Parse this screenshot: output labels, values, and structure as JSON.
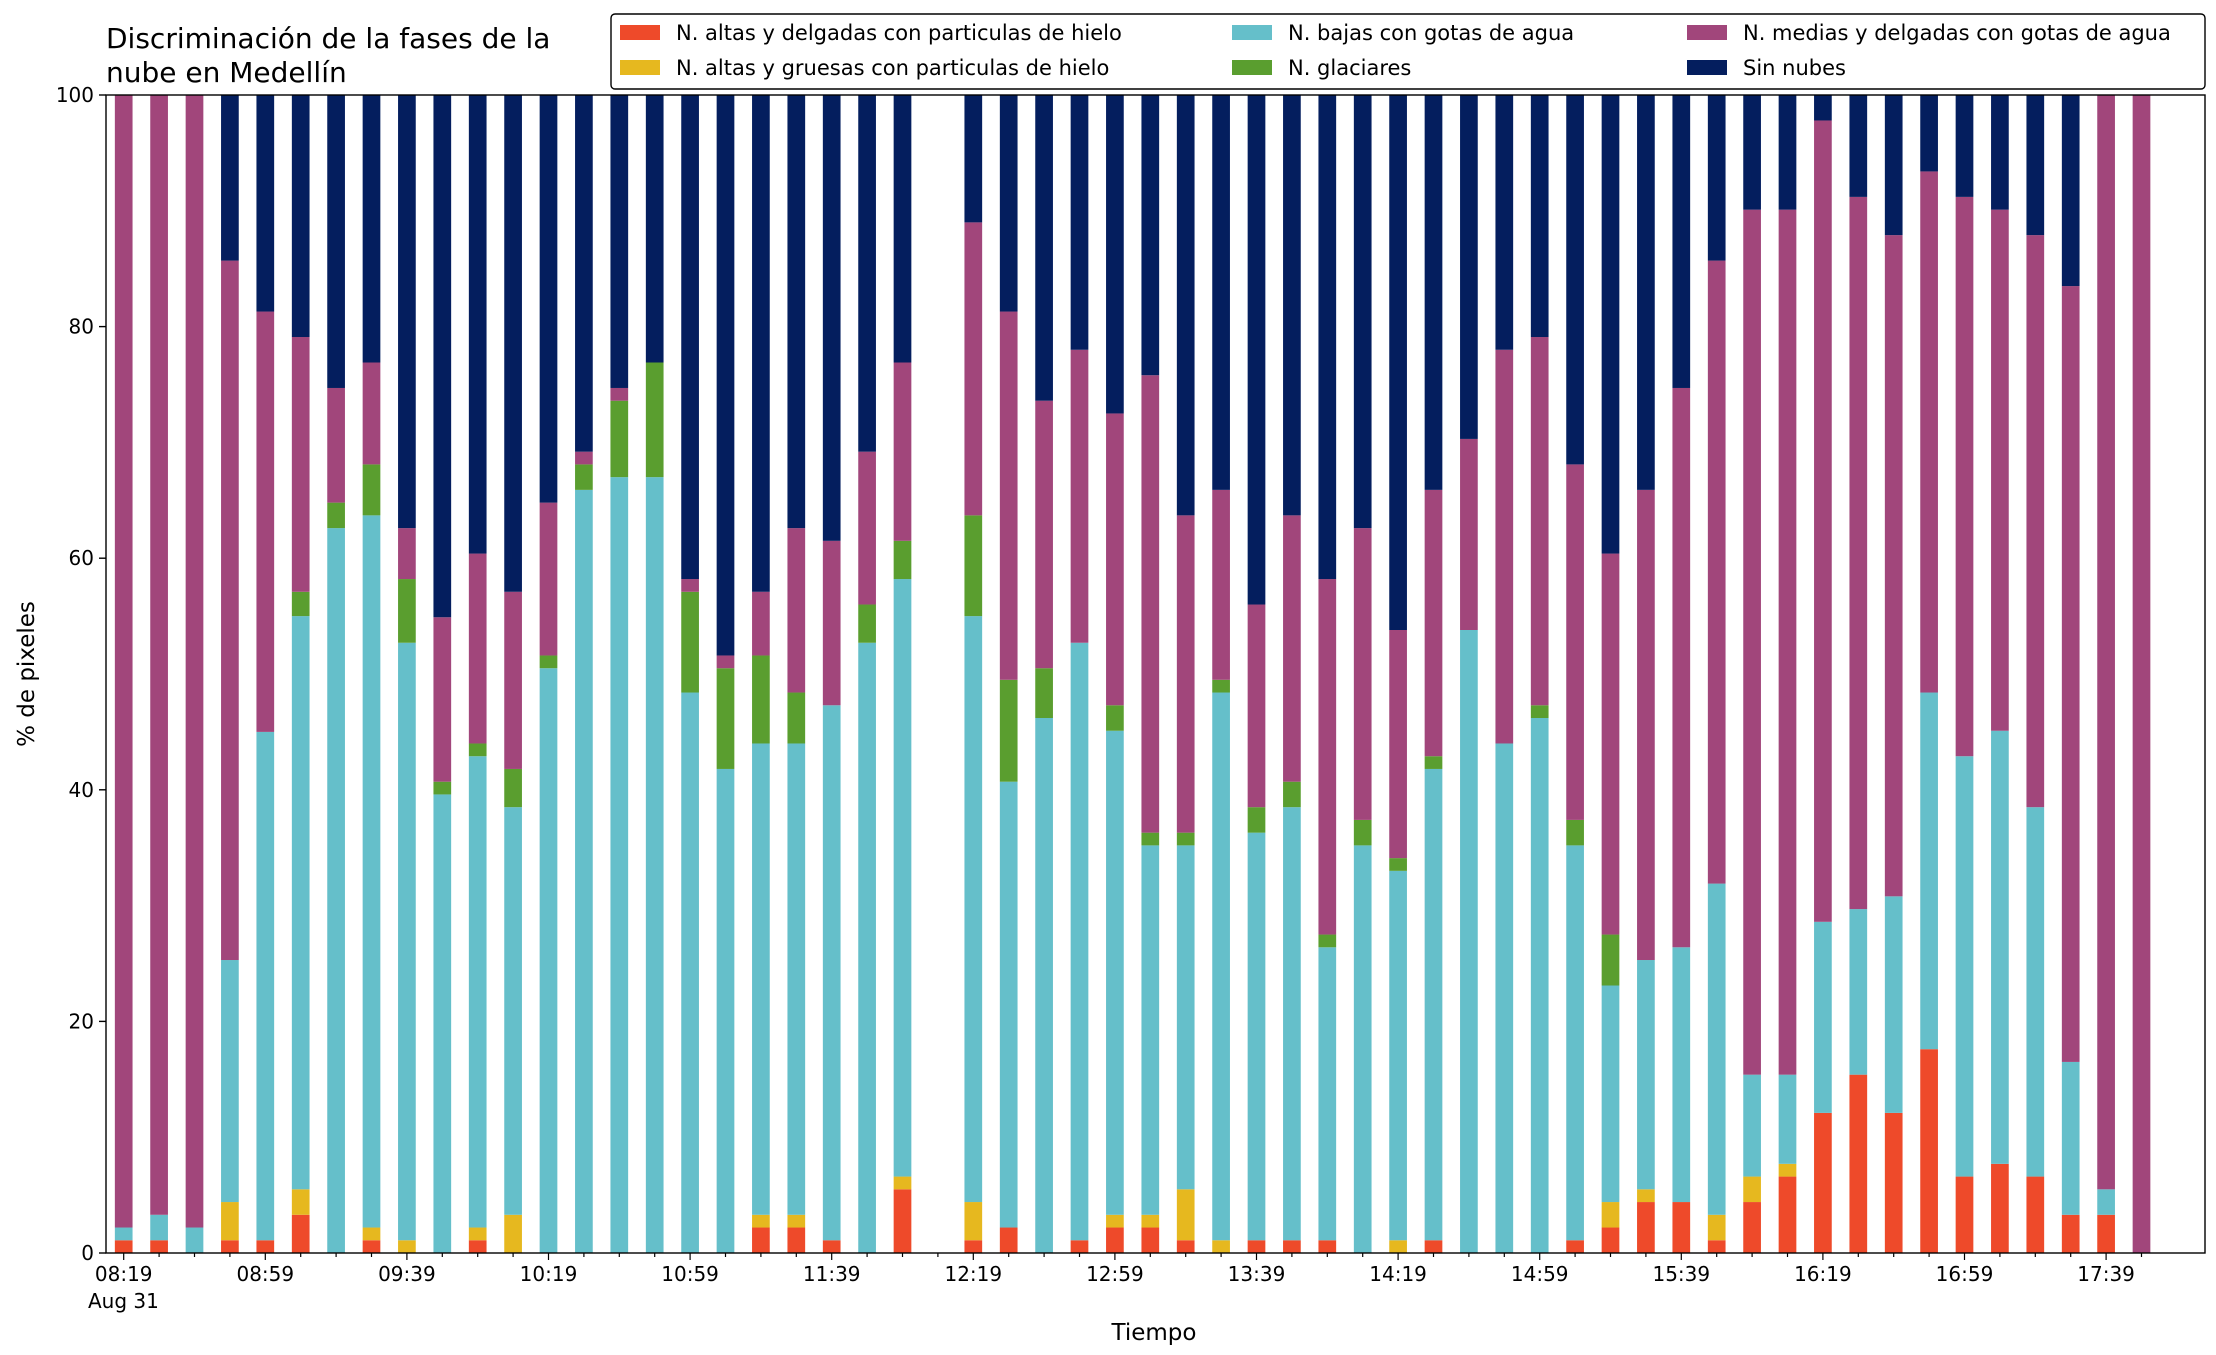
{
  "chart_data": {
    "type": "stacked_bar",
    "title": "Discriminación de la fases de la nube en Medellín",
    "xlabel": "Tiempo",
    "ylabel": "% de pixeles",
    "date_label": "Aug 31",
    "categories": [
      "08:19",
      null,
      null,
      null,
      "08:59",
      null,
      null,
      null,
      "09:39",
      null,
      null,
      null,
      "10:19",
      null,
      null,
      null,
      "10:59",
      null,
      null,
      null,
      "11:39",
      null,
      null,
      null,
      "12:19",
      null,
      null,
      null,
      "12:59",
      null,
      null,
      null,
      "13:39",
      null,
      null,
      null,
      "14:19",
      null,
      null,
      null,
      "14:59",
      null,
      null,
      null,
      "15:39",
      null,
      null,
      null,
      "16:19",
      null,
      null,
      null,
      "16:59",
      null,
      null,
      null,
      "17:39",
      null
    ],
    "ylim": [
      0,
      100
    ],
    "yticks": [
      0,
      20,
      40,
      60,
      80,
      100
    ],
    "legend": "upper right",
    "series": [
      {
        "name": "N. altas y delgadas con particulas de hielo",
        "color": "#ee4a2a",
        "values": [
          1.1,
          1.1,
          0,
          1.1,
          1.1,
          3.3,
          0,
          1.1,
          0,
          0,
          1.1,
          0,
          0,
          0,
          0,
          0,
          0,
          0,
          2.2,
          2.2,
          1.1,
          0,
          5.5,
          null,
          1.1,
          2.2,
          0,
          1.1,
          2.2,
          2.2,
          1.1,
          0,
          1.1,
          1.1,
          1.1,
          0,
          0,
          1.1,
          0,
          0,
          0,
          1.1,
          2.2,
          4.4,
          4.4,
          1.1,
          4.4,
          6.6,
          12.1,
          15.4,
          12.1,
          17.6,
          6.6,
          7.7,
          6.6,
          3.3,
          3.3,
          0
        ]
      },
      {
        "name": "N. altas y gruesas con particulas de hielo",
        "color": "#e6b81f",
        "values": [
          0,
          0,
          0,
          3.3,
          0,
          2.2,
          0,
          1.1,
          1.1,
          0,
          1.1,
          3.3,
          0,
          0,
          0,
          0,
          0,
          0,
          1.1,
          1.1,
          0,
          0,
          1.1,
          null,
          3.3,
          0,
          0,
          0,
          1.1,
          1.1,
          4.4,
          1.1,
          0,
          0,
          0,
          0,
          1.1,
          0,
          0,
          0,
          0,
          0,
          2.2,
          1.1,
          0,
          2.2,
          2.2,
          1.1,
          0,
          0,
          0,
          0,
          0,
          0,
          0,
          0,
          0,
          0
        ]
      },
      {
        "name": "N. bajas con gotas de agua",
        "color": "#65bfca",
        "values": [
          1.1,
          2.2,
          2.2,
          20.9,
          43.9,
          49.5,
          62.6,
          61.5,
          51.6,
          39.6,
          40.7,
          35.2,
          50.5,
          65.9,
          67,
          67,
          48.4,
          41.8,
          40.7,
          40.7,
          46.2,
          52.7,
          51.6,
          null,
          50.6,
          38.5,
          46.2,
          51.6,
          41.8,
          31.9,
          29.7,
          47.3,
          35.2,
          37.4,
          25.3,
          35.2,
          31.9,
          40.7,
          53.8,
          44,
          46.2,
          34.1,
          18.7,
          19.8,
          22,
          28.6,
          8.8,
          7.7,
          16.5,
          14.3,
          18.7,
          30.8,
          36.3,
          37.4,
          31.9,
          13.2,
          2.2,
          0
        ]
      },
      {
        "name": "N. glaciares",
        "color": "#5a9e2f",
        "values": [
          0,
          0,
          0,
          0,
          0,
          2.1,
          2.2,
          4.4,
          5.5,
          1.1,
          1.1,
          3.3,
          1.1,
          2.2,
          6.6,
          9.9,
          8.7,
          8.7,
          7.6,
          4.4,
          0,
          3.3,
          3.3,
          null,
          8.7,
          8.8,
          4.3,
          0,
          2.2,
          1.1,
          1.1,
          1.1,
          2.2,
          2.2,
          1.1,
          2.2,
          1.1,
          1.1,
          0,
          0,
          1.1,
          2.2,
          4.4,
          0,
          0,
          0,
          0,
          0,
          0,
          0,
          0,
          0,
          0,
          0,
          0,
          0,
          0,
          0
        ]
      },
      {
        "name": "N. medias y delgadas con gotas de agua",
        "color": "#a1467b",
        "values": [
          97.8,
          96.7,
          97.8,
          60.4,
          36.3,
          22,
          9.9,
          8.8,
          4.4,
          14.2,
          16.4,
          15.3,
          13.2,
          1.1,
          1.1,
          0,
          1.1,
          1.1,
          5.5,
          14.2,
          14.2,
          13.2,
          15.4,
          null,
          25.3,
          31.8,
          23.1,
          25.3,
          25.2,
          39.5,
          27.4,
          16.4,
          17.5,
          23,
          30.7,
          25.2,
          19.7,
          23,
          16.5,
          34,
          31.8,
          30.7,
          32.9,
          40.6,
          48.3,
          53.8,
          74.7,
          74.7,
          69.2,
          61.5,
          57.1,
          45,
          48.3,
          45,
          49.4,
          67,
          94.5,
          100
        ]
      },
      {
        "name": "Sin nubes",
        "color": "#041e5e",
        "values": [
          0,
          0,
          0,
          14.3,
          18.7,
          20.9,
          25.3,
          23.1,
          37.4,
          45.1,
          39.6,
          42.9,
          35.2,
          30.8,
          25.3,
          23.1,
          41.8,
          48.4,
          42.9,
          37.4,
          38.5,
          30.8,
          23.1,
          null,
          11,
          18.7,
          26.4,
          22,
          27.5,
          24.2,
          36.3,
          34.1,
          44,
          36.3,
          41.8,
          37.4,
          46.2,
          34.1,
          29.7,
          22,
          20.9,
          31.9,
          39.6,
          34.1,
          25.3,
          14.3,
          9.9,
          9.9,
          2.2,
          8.8,
          12.1,
          6.6,
          8.8,
          9.9,
          12.1,
          16.5,
          0,
          0
        ]
      }
    ]
  }
}
